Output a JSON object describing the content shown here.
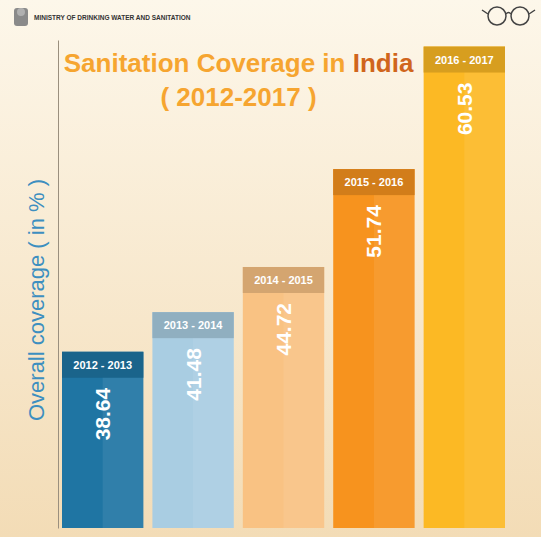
{
  "chart_data": {
    "type": "bar",
    "title": "Sanitation Coverage in India",
    "subtitle": "( 2012-2017 )",
    "y_label": "Overall coverage ( in % )",
    "annotations": [
      "MINISTRY OF DRINKING WATER AND SANITATION"
    ],
    "categories": [
      "2012 - 2013",
      "2013 - 2014",
      "2014 - 2015",
      "2015 - 2016",
      "2016 - 2017"
    ],
    "values": [
      38.64,
      41.48,
      44.72,
      51.74,
      60.53
    ],
    "colors": [
      "#1f75a3",
      "#a9cde2",
      "#f9c283",
      "#f7931e",
      "#fcb924"
    ],
    "ylim": [
      26,
      61
    ],
    "yticks": [],
    "grid": false,
    "data_labels": true,
    "tick_labels": false
  }
}
